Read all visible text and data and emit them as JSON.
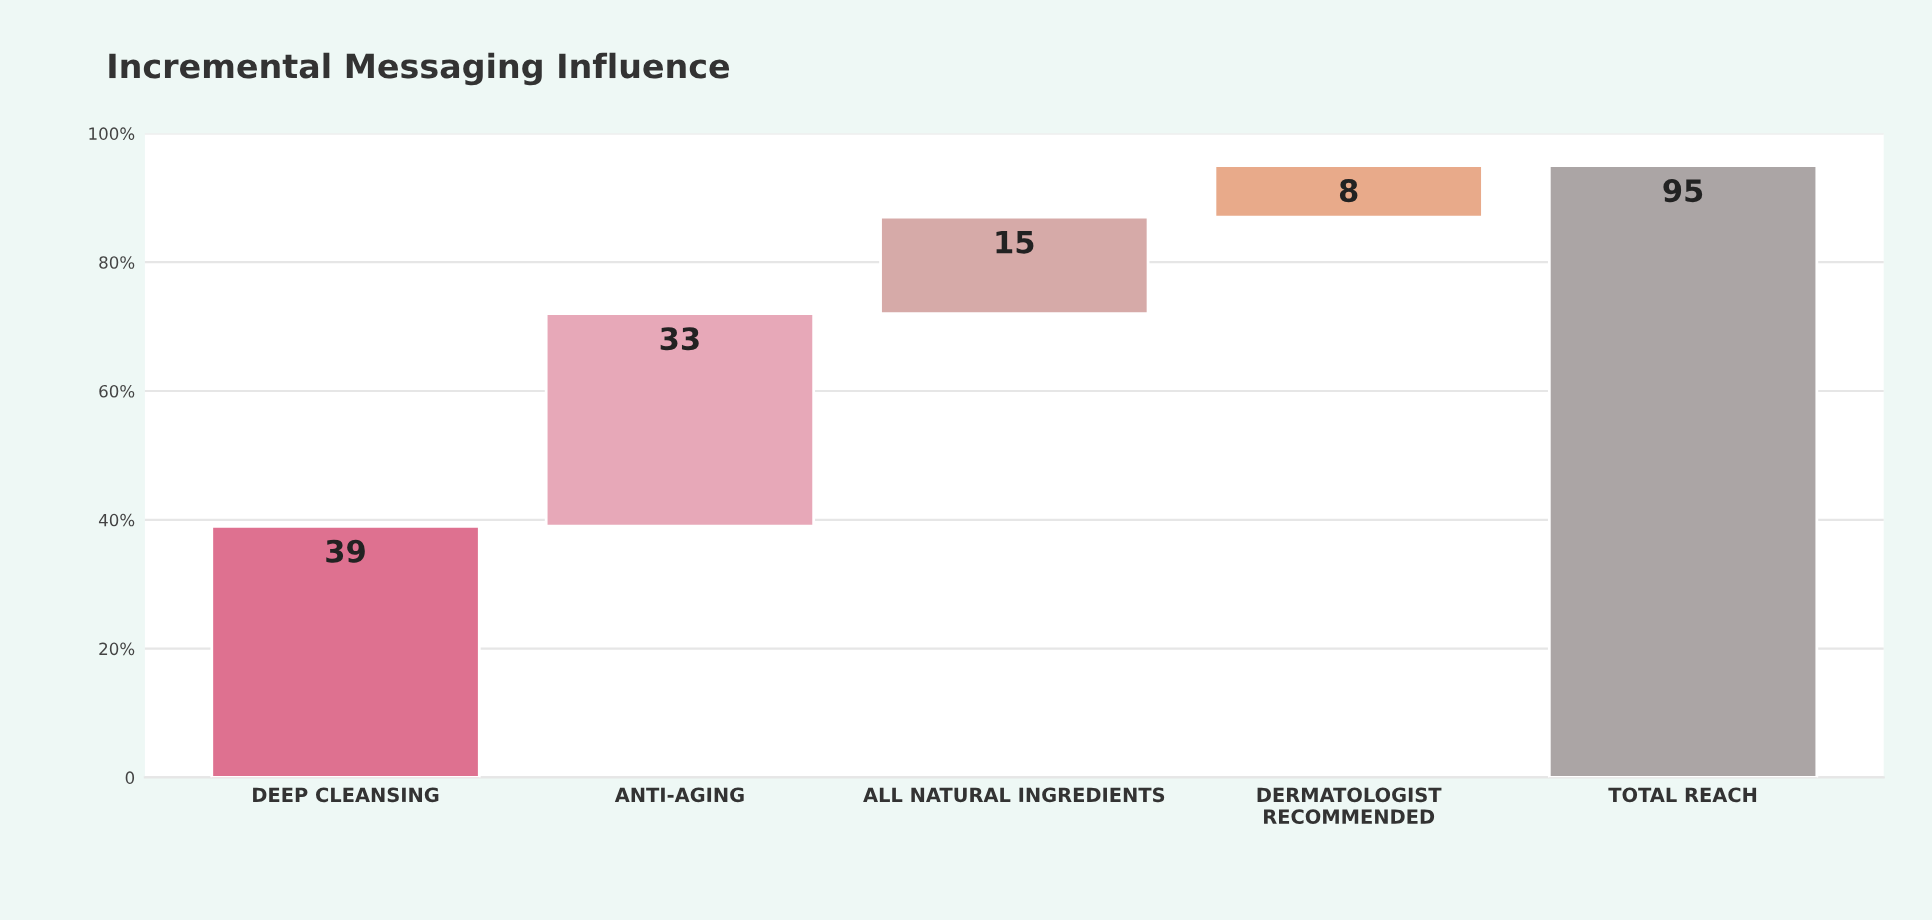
{
  "chart_data": {
    "type": "bar",
    "title": "Incremental Messaging Influence",
    "categories": [
      "DEEP CLEANSING",
      "ANTI-AGING",
      "ALL NATURAL INGREDIENTS",
      "DERMATOLOGIST\nRECOMMENDED",
      "TOTAL REACH"
    ],
    "values": [
      39,
      33,
      15,
      8,
      95
    ],
    "base": [
      0,
      39,
      72,
      87,
      0
    ],
    "colors": [
      "#de7190",
      "#e7a8b8",
      "#d6aaa8",
      "#e8aa8a",
      "#aba5a5"
    ],
    "ylim": [
      0,
      100
    ],
    "yticks": [
      {
        "value": 0,
        "label": "0"
      },
      {
        "value": 20,
        "label": "20%"
      },
      {
        "value": 40,
        "label": "40%"
      },
      {
        "value": 60,
        "label": "60%"
      },
      {
        "value": 80,
        "label": "80%"
      },
      {
        "value": 100,
        "label": "100%"
      }
    ],
    "grid": "y",
    "data_labels": true,
    "legend": false
  }
}
